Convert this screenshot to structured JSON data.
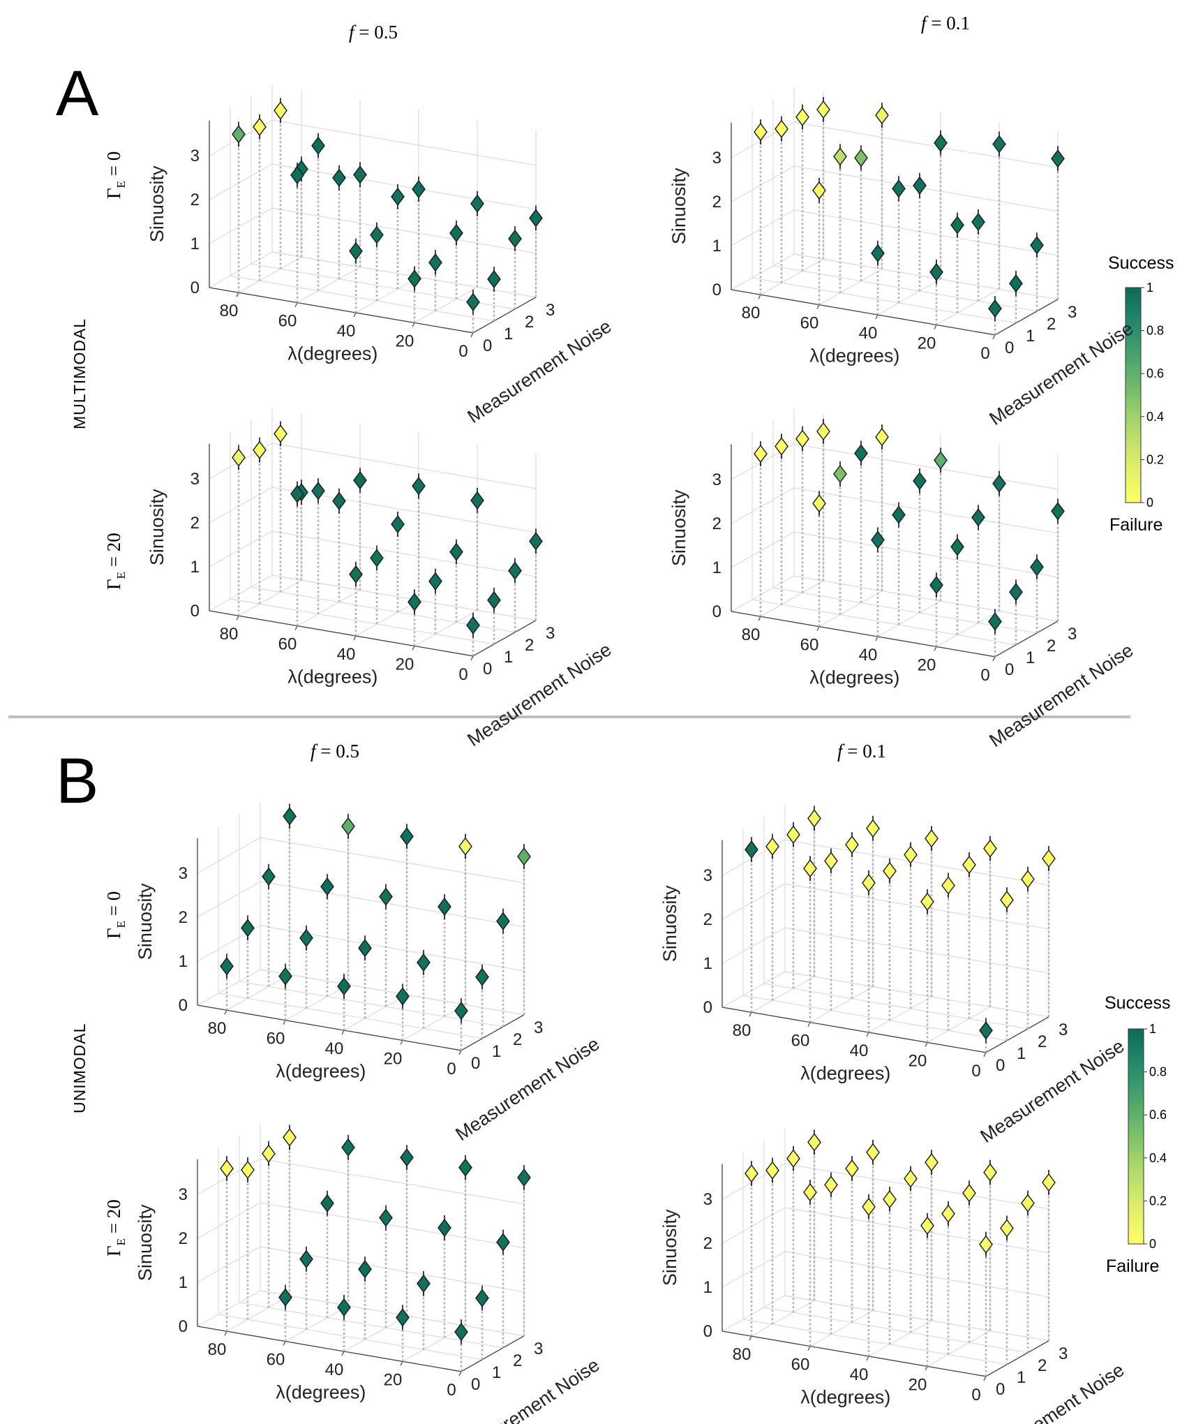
{
  "sections": [
    {
      "letter": "A",
      "mode": "MULTIMODAL"
    },
    {
      "letter": "B",
      "mode": "UNIMODAL"
    }
  ],
  "col_titles": {
    "f_symbol": "f",
    "left": " = 0.5",
    "right": " = 0.1"
  },
  "row_labels": {
    "gamma": "Γ",
    "sub": "E",
    "row0": " = 0",
    "row1": " = 20"
  },
  "axes": {
    "xlabel": "λ(degrees)",
    "ylabel": "Measurement Noise",
    "zlabel": "Sinuosity",
    "xticks": [
      "80",
      "60",
      "40",
      "20",
      "0"
    ],
    "yticks": [
      "0",
      "1",
      "2",
      "3"
    ],
    "zticks": [
      "0",
      "1",
      "2",
      "3"
    ]
  },
  "colorbar": {
    "top_label": "Success",
    "bottom_label": "Failure",
    "ticks": [
      "0",
      "0.2",
      "0.4",
      "0.6",
      "0.8",
      "1"
    ],
    "colors": [
      "#ffff66",
      "#d8eb6a",
      "#9fd26a",
      "#5fb06b",
      "#2a9070",
      "#0c6b58"
    ]
  },
  "chart_data": [
    {
      "type": "scatter",
      "section": "A",
      "mode": "MULTIMODAL",
      "f": 0.5,
      "gamma_E": 0,
      "xlabel": "λ(degrees)",
      "ylabel": "Measurement Noise",
      "zlabel": "Sinuosity",
      "xlim": [
        0,
        90
      ],
      "ylim": [
        0,
        3
      ],
      "zlim": [
        0,
        3.5
      ],
      "series": [
        {
          "noise": 3,
          "lambda": [
            0,
            20,
            40,
            60,
            80
          ],
          "sinuosity": [
            1.8,
            1.9,
            2.0,
            2.1,
            2.0
          ],
          "success": [
            0.98,
            0.97,
            0.98,
            0.97,
            0.97
          ]
        },
        {
          "noise": 2,
          "lambda": [
            0,
            20,
            40,
            60,
            80
          ],
          "sinuosity": [
            1.6,
            1.5,
            2.1,
            2.3,
            3.6
          ],
          "success": [
            0.97,
            0.98,
            0.97,
            0.98,
            0.0
          ]
        },
        {
          "noise": 1,
          "lambda": [
            0,
            20,
            40,
            60,
            80
          ],
          "sinuosity": [
            0.95,
            1.1,
            1.5,
            3.3,
            3.5
          ],
          "success": [
            0.98,
            0.97,
            0.96,
            0.98,
            0.05
          ]
        },
        {
          "noise": 0,
          "lambda": [
            0,
            20,
            40,
            60,
            80
          ],
          "sinuosity": [
            0.7,
            1.0,
            1.4,
            2.9,
            3.6
          ],
          "success": [
            0.97,
            0.97,
            0.98,
            0.98,
            0.6
          ]
        }
      ]
    },
    {
      "type": "scatter",
      "section": "A",
      "mode": "MULTIMODAL",
      "f": 0.1,
      "gamma_E": 0,
      "xlabel": "λ(degrees)",
      "ylabel": "Measurement Noise",
      "zlabel": "Sinuosity",
      "xlim": [
        0,
        90
      ],
      "ylim": [
        0,
        3
      ],
      "zlim": [
        0,
        3.5
      ],
      "series": [
        {
          "noise": 3,
          "lambda": [
            0,
            20,
            40,
            60,
            80
          ],
          "sinuosity": [
            3.2,
            3.3,
            3.1,
            3.5,
            3.4
          ],
          "success": [
            0.97,
            0.96,
            0.95,
            0.1,
            0.05
          ]
        },
        {
          "noise": 2,
          "lambda": [
            0,
            20,
            40,
            60,
            80
          ],
          "sinuosity": [
            1.5,
            1.8,
            2.4,
            2.8,
            3.5
          ],
          "success": [
            0.97,
            0.96,
            0.97,
            0.5,
            0.0
          ]
        },
        {
          "noise": 1,
          "lambda": [
            0,
            20,
            40,
            60,
            80
          ],
          "sinuosity": [
            0.9,
            2.0,
            2.6,
            3.1,
            3.5
          ],
          "success": [
            0.98,
            0.97,
            0.97,
            0.3,
            0.0
          ]
        },
        {
          "noise": 0,
          "lambda": [
            0,
            20,
            40,
            60,
            80
          ],
          "sinuosity": [
            0.6,
            1.2,
            1.4,
            2.6,
            3.7
          ],
          "success": [
            0.97,
            0.98,
            0.97,
            0.05,
            0.0
          ]
        }
      ]
    },
    {
      "type": "scatter",
      "section": "A",
      "mode": "MULTIMODAL",
      "f": 0.5,
      "gamma_E": 20,
      "xlabel": "λ(degrees)",
      "ylabel": "Measurement Noise",
      "zlabel": "Sinuosity",
      "xlim": [
        0,
        90
      ],
      "ylim": [
        0,
        3
      ],
      "zlim": [
        0,
        3.5
      ],
      "series": [
        {
          "noise": 3,
          "lambda": [
            0,
            20,
            40,
            60,
            80
          ],
          "sinuosity": [
            1.8,
            2.5,
            2.6,
            2.5,
            2.0
          ],
          "success": [
            0.97,
            0.98,
            0.97,
            0.98,
            0.97
          ]
        },
        {
          "noise": 2,
          "lambda": [
            0,
            20,
            40,
            60,
            80
          ],
          "sinuosity": [
            1.4,
            1.6,
            2.0,
            2.3,
            3.6
          ],
          "success": [
            0.97,
            0.98,
            0.97,
            0.98,
            0.0
          ]
        },
        {
          "noise": 1,
          "lambda": [
            0,
            20,
            40,
            60,
            80
          ],
          "sinuosity": [
            1.0,
            1.2,
            1.5,
            2.8,
            3.5
          ],
          "success": [
            0.98,
            0.97,
            0.96,
            0.97,
            0.05
          ]
        },
        {
          "noise": 0,
          "lambda": [
            0,
            20,
            40,
            60,
            80
          ],
          "sinuosity": [
            0.7,
            1.0,
            1.4,
            3.0,
            3.6
          ],
          "success": [
            0.97,
            0.97,
            0.97,
            0.98,
            0.1
          ]
        }
      ]
    },
    {
      "type": "scatter",
      "section": "A",
      "mode": "MULTIMODAL",
      "f": 0.1,
      "gamma_E": 20,
      "xlabel": "λ(degrees)",
      "ylabel": "Measurement Noise",
      "zlabel": "Sinuosity",
      "xlim": [
        0,
        90
      ],
      "ylim": [
        0,
        3
      ],
      "zlim": [
        0,
        3.5
      ],
      "series": [
        {
          "noise": 3,
          "lambda": [
            0,
            20,
            40,
            60,
            80
          ],
          "sinuosity": [
            2.5,
            2.9,
            3.2,
            3.5,
            3.4
          ],
          "success": [
            0.97,
            0.96,
            0.6,
            0.0,
            0.05
          ]
        },
        {
          "noise": 2,
          "lambda": [
            0,
            20,
            40,
            60,
            80
          ],
          "sinuosity": [
            1.5,
            2.4,
            3.0,
            3.4,
            3.5
          ],
          "success": [
            0.98,
            0.97,
            0.97,
            0.96,
            0.0
          ]
        },
        {
          "noise": 1,
          "lambda": [
            0,
            20,
            40,
            60,
            80
          ],
          "sinuosity": [
            1.2,
            2.0,
            2.5,
            3.2,
            3.6
          ],
          "success": [
            0.98,
            0.97,
            0.98,
            0.5,
            0.0
          ]
        },
        {
          "noise": 0,
          "lambda": [
            0,
            20,
            40,
            60,
            80
          ],
          "sinuosity": [
            0.8,
            1.4,
            2.2,
            2.8,
            3.7
          ],
          "success": [
            0.97,
            0.98,
            0.97,
            0.05,
            0.0
          ]
        }
      ]
    },
    {
      "type": "scatter",
      "section": "B",
      "mode": "UNIMODAL",
      "f": 0.5,
      "gamma_E": 0,
      "xlabel": "λ(degrees)",
      "ylabel": "Measurement Noise",
      "zlabel": "Sinuosity",
      "xlim": [
        0,
        90
      ],
      "ylim": [
        0,
        3
      ],
      "zlim": [
        0,
        3.5
      ],
      "series": [
        {
          "noise": 3,
          "lambda": [
            0,
            20,
            40,
            60,
            80
          ],
          "sinuosity": [
            3.6,
            3.6,
            3.6,
            3.6,
            3.6
          ],
          "success": [
            0.6,
            0.05,
            0.97,
            0.6,
            0.97
          ]
        },
        {
          "noise": 2,
          "lambda": [
            0,
            20,
            40,
            60,
            80
          ],
          "sinuosity": [
            2.4,
            2.5,
            2.5,
            2.5,
            2.5
          ],
          "success": [
            0.97,
            0.98,
            0.97,
            0.98,
            0.97
          ]
        },
        {
          "noise": 1,
          "lambda": [
            0,
            20,
            40,
            60,
            80
          ],
          "sinuosity": [
            1.4,
            1.5,
            1.6,
            1.6,
            1.6
          ],
          "success": [
            0.97,
            0.97,
            0.98,
            0.97,
            0.97
          ]
        },
        {
          "noise": 0,
          "lambda": [
            0,
            20,
            40,
            60,
            80
          ],
          "sinuosity": [
            0.9,
            1.0,
            1.0,
            1.0,
            1.0
          ],
          "success": [
            0.97,
            0.97,
            0.98,
            0.97,
            0.97
          ]
        }
      ]
    },
    {
      "type": "scatter",
      "section": "B",
      "mode": "UNIMODAL",
      "f": 0.1,
      "gamma_E": 0,
      "xlabel": "λ(degrees)",
      "ylabel": "Measurement Noise",
      "zlabel": "Sinuosity",
      "xlim": [
        0,
        90
      ],
      "ylim": [
        0,
        3
      ],
      "zlim": [
        0,
        3.5
      ],
      "series": [
        {
          "noise": 3,
          "lambda": [
            0,
            20,
            40,
            60,
            80
          ],
          "sinuosity": [
            3.6,
            3.6,
            3.6,
            3.6,
            3.6
          ],
          "success": [
            0.02,
            0.02,
            0.02,
            0.02,
            0.02
          ]
        },
        {
          "noise": 2,
          "lambda": [
            0,
            20,
            40,
            60,
            80
          ],
          "sinuosity": [
            3.4,
            3.5,
            3.5,
            3.5,
            3.5
          ],
          "success": [
            0.02,
            0.02,
            0.02,
            0.02,
            0.02
          ]
        },
        {
          "noise": 1,
          "lambda": [
            0,
            20,
            40,
            60,
            80
          ],
          "sinuosity": [
            3.2,
            3.3,
            3.4,
            3.4,
            3.5
          ],
          "success": [
            0.02,
            0.02,
            0.02,
            0.02,
            0.02
          ]
        },
        {
          "noise": 0,
          "lambda": [
            0,
            20,
            40,
            60,
            80
          ],
          "sinuosity": [
            0.5,
            3.2,
            3.4,
            3.5,
            3.7
          ],
          "success": [
            0.97,
            0.02,
            0.02,
            0.02,
            0.97
          ]
        }
      ]
    },
    {
      "type": "scatter",
      "section": "B",
      "mode": "UNIMODAL",
      "f": 0.5,
      "gamma_E": 20,
      "xlabel": "λ(degrees)",
      "ylabel": "Measurement Noise",
      "zlabel": "Sinuosity",
      "xlim": [
        0,
        90
      ],
      "ylim": [
        0,
        3
      ],
      "zlim": [
        0,
        3.5
      ],
      "series": [
        {
          "noise": 3,
          "lambda": [
            0,
            20,
            40,
            60,
            80
          ],
          "sinuosity": [
            3.6,
            3.6,
            3.6,
            3.6,
            3.6
          ],
          "success": [
            0.97,
            0.97,
            0.98,
            0.97,
            0.02
          ]
        },
        {
          "noise": 2,
          "lambda": [
            0,
            20,
            40,
            60,
            80
          ],
          "sinuosity": [
            2.4,
            2.5,
            2.5,
            2.6,
            3.5
          ],
          "success": [
            0.97,
            0.98,
            0.97,
            0.98,
            0.02
          ]
        },
        {
          "noise": 1,
          "lambda": [
            0,
            20,
            40,
            60,
            80
          ],
          "sinuosity": [
            1.4,
            1.5,
            1.6,
            1.6,
            3.4
          ],
          "success": [
            0.97,
            0.97,
            0.98,
            0.97,
            0.02
          ]
        },
        {
          "noise": 0,
          "lambda": [
            0,
            20,
            40,
            60,
            80
          ],
          "sinuosity": [
            0.9,
            1.0,
            1.0,
            1.0,
            3.7
          ],
          "success": [
            0.97,
            0.97,
            0.98,
            0.97,
            0.02
          ]
        }
      ]
    },
    {
      "type": "scatter",
      "section": "B",
      "mode": "UNIMODAL",
      "f": 0.1,
      "gamma_E": 20,
      "xlabel": "λ(degrees)",
      "ylabel": "Measurement Noise",
      "zlabel": "Sinuosity",
      "xlim": [
        0,
        90
      ],
      "ylim": [
        0,
        3
      ],
      "zlim": [
        0,
        3.5
      ],
      "series": [
        {
          "noise": 3,
          "lambda": [
            0,
            20,
            40,
            60,
            80
          ],
          "sinuosity": [
            3.6,
            3.6,
            3.6,
            3.6,
            3.6
          ],
          "success": [
            0.02,
            0.02,
            0.02,
            0.02,
            0.02
          ]
        },
        {
          "noise": 2,
          "lambda": [
            0,
            20,
            40,
            60,
            80
          ],
          "sinuosity": [
            3.4,
            3.4,
            3.5,
            3.5,
            3.5
          ],
          "success": [
            0.02,
            0.02,
            0.02,
            0.02,
            0.02
          ]
        },
        {
          "noise": 1,
          "lambda": [
            0,
            20,
            40,
            60,
            80
          ],
          "sinuosity": [
            3.1,
            3.2,
            3.3,
            3.4,
            3.5
          ],
          "success": [
            0.02,
            0.02,
            0.02,
            0.02,
            0.02
          ]
        },
        {
          "noise": 0,
          "lambda": [
            0,
            20,
            40,
            60,
            80
          ],
          "sinuosity": [
            3.0,
            3.2,
            3.4,
            3.5,
            3.7
          ],
          "success": [
            0.02,
            0.02,
            0.02,
            0.02,
            0.02
          ]
        }
      ]
    }
  ]
}
